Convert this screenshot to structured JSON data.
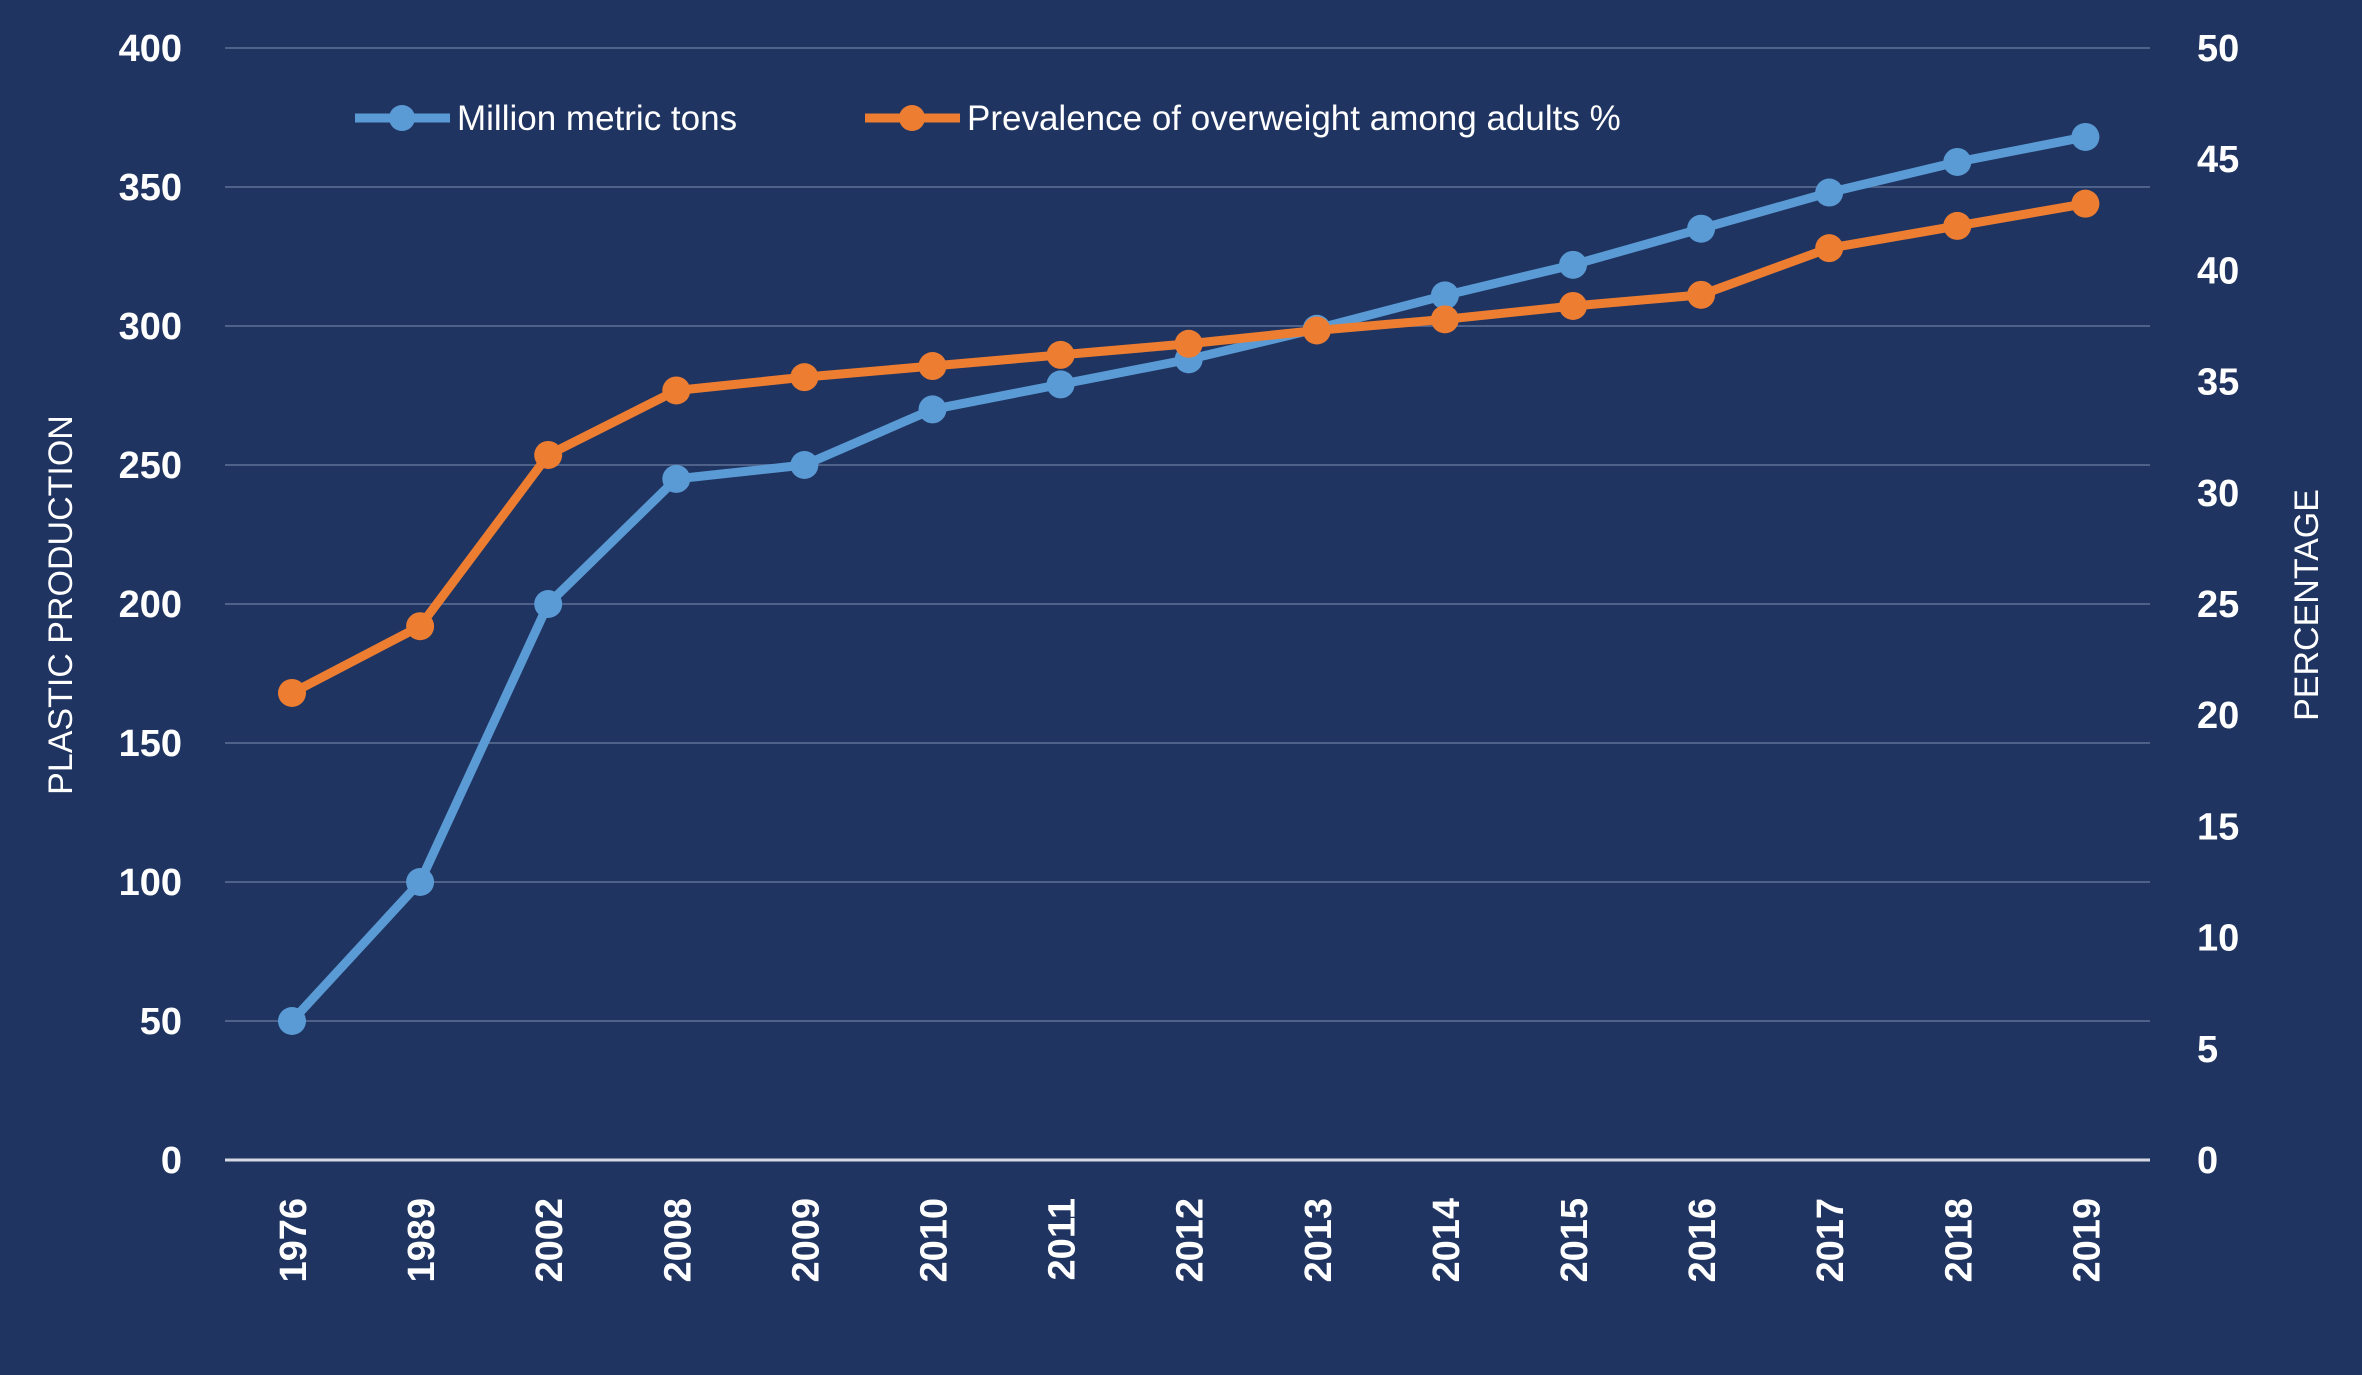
{
  "chart_data": {
    "type": "line",
    "categories": [
      "1976",
      "1989",
      "2002",
      "2008",
      "2009",
      "2010",
      "2011",
      "2012",
      "2013",
      "2014",
      "2015",
      "2016",
      "2017",
      "2018",
      "2019"
    ],
    "series": [
      {
        "name": "Million metric tons",
        "axis": "left",
        "color": "#5b9bd5",
        "values": [
          50,
          100,
          200,
          245,
          250,
          270,
          279,
          288,
          299,
          311,
          322,
          335,
          348,
          359,
          368
        ]
      },
      {
        "name": "Prevalence of overweight among adults %",
        "axis": "right",
        "color": "#ed7d31",
        "values": [
          21,
          24,
          31.7,
          34.6,
          35.2,
          35.7,
          36.2,
          36.7,
          37.3,
          37.8,
          38.4,
          38.9,
          41,
          42,
          43
        ]
      }
    ],
    "ylabel": "PLASTIC PRODUCTION",
    "ylim": [
      0,
      400
    ],
    "yticks": [
      0,
      50,
      100,
      150,
      200,
      250,
      300,
      350,
      400
    ],
    "y2label": "PERCENTAGE",
    "y2lim": [
      0,
      50
    ],
    "y2ticks": [
      0,
      5,
      10,
      15,
      20,
      25,
      30,
      35,
      40,
      45,
      50
    ],
    "grid": true,
    "legend": "top-left"
  },
  "colors": {
    "background": "#1f3461",
    "grid": "#4d6189",
    "axis": "#d4d9e3",
    "text": "#ffffff"
  }
}
